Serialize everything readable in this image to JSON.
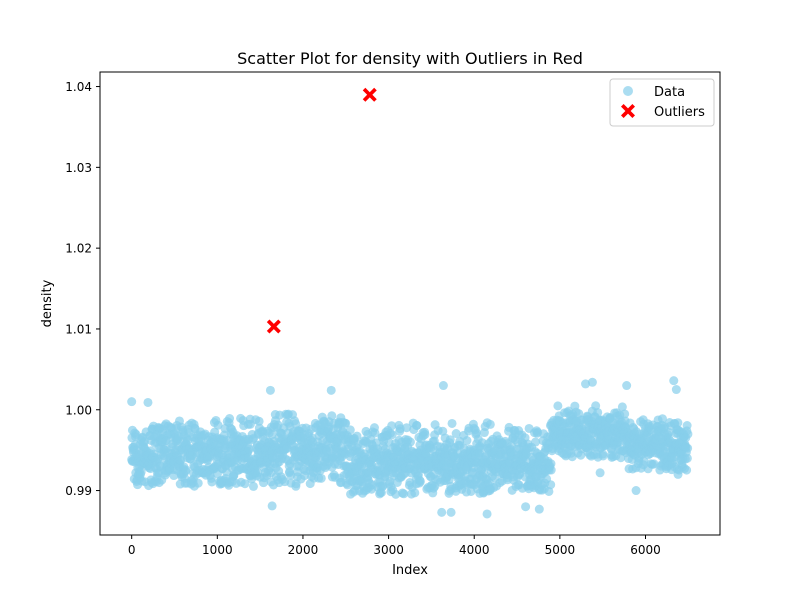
{
  "chart_data": {
    "type": "scatter",
    "title": "Scatter Plot for density with Outliers in Red",
    "xlabel": "Index",
    "ylabel": "density",
    "xlim": [
      -370,
      6870
    ],
    "ylim": [
      0.9845,
      1.0418
    ],
    "x_ticks": [
      0,
      1000,
      2000,
      3000,
      4000,
      5000,
      6000
    ],
    "x_tick_labels": [
      "0",
      "1000",
      "2000",
      "3000",
      "4000",
      "5000",
      "6000"
    ],
    "y_ticks": [
      0.99,
      1.0,
      1.01,
      1.02,
      1.03,
      1.04
    ],
    "y_tick_labels": [
      "0.99",
      "1.00",
      "1.01",
      "1.02",
      "1.03",
      "1.04"
    ],
    "grid": false,
    "legend_position": "top-right",
    "colors": {
      "data": "#87CEEB",
      "outliers": "#FF0000"
    },
    "series": [
      {
        "name": "Data",
        "marker": "circle",
        "total_points": 6497,
        "x_range": [
          0,
          6496
        ],
        "typical_band": [
          {
            "x_start": 0,
            "x_end": 1600,
            "y_low": 0.9905,
            "y_high": 0.999,
            "center": 0.9945
          },
          {
            "x_start": 1600,
            "x_end": 2500,
            "y_low": 0.9905,
            "y_high": 0.9995,
            "center": 0.995
          },
          {
            "x_start": 2500,
            "x_end": 4900,
            "y_low": 0.9895,
            "y_high": 0.9985,
            "center": 0.9935
          },
          {
            "x_start": 4900,
            "x_end": 5800,
            "y_low": 0.994,
            "y_high": 1.0005,
            "center": 0.997
          },
          {
            "x_start": 5800,
            "x_end": 6496,
            "y_low": 0.9925,
            "y_high": 0.999,
            "center": 0.9955
          }
        ],
        "notable_points": [
          {
            "x": 0,
            "y": 1.001
          },
          {
            "x": 190,
            "y": 1.0009
          },
          {
            "x": 1620,
            "y": 1.0024
          },
          {
            "x": 1640,
            "y": 0.9881
          },
          {
            "x": 2330,
            "y": 1.0024
          },
          {
            "x": 3640,
            "y": 1.003
          },
          {
            "x": 3620,
            "y": 0.9873
          },
          {
            "x": 3730,
            "y": 0.9873
          },
          {
            "x": 4150,
            "y": 0.9871
          },
          {
            "x": 4600,
            "y": 0.988
          },
          {
            "x": 4760,
            "y": 0.9877
          },
          {
            "x": 5300,
            "y": 1.0032
          },
          {
            "x": 5380,
            "y": 1.0034
          },
          {
            "x": 5780,
            "y": 1.003
          },
          {
            "x": 5470,
            "y": 0.9922
          },
          {
            "x": 5890,
            "y": 0.99
          },
          {
            "x": 6330,
            "y": 1.0036
          },
          {
            "x": 6360,
            "y": 1.0025
          },
          {
            "x": 6380,
            "y": 0.992
          }
        ]
      },
      {
        "name": "Outliers",
        "marker": "x-filled",
        "points": [
          {
            "x": 1660,
            "y": 1.0103
          },
          {
            "x": 2780,
            "y": 1.03898
          }
        ]
      }
    ]
  }
}
